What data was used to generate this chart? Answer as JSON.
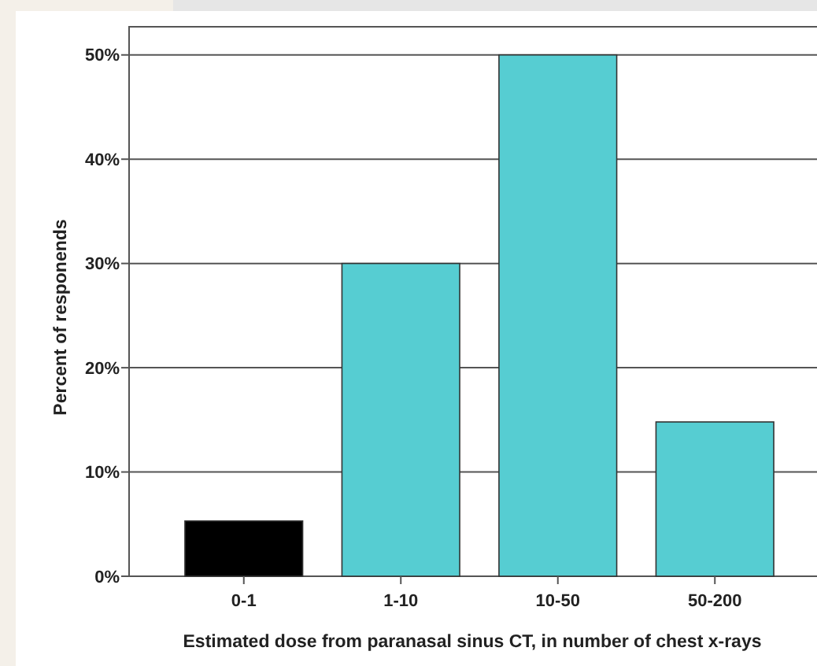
{
  "chart_data": {
    "type": "bar",
    "xlabel": "Estimated dose from paranasal sinus CT, in number of chest x-rays",
    "ylabel": "Percent of responends",
    "categories": [
      "0-1",
      "1-10",
      "10-50",
      "50-200"
    ],
    "values": [
      5.3,
      30,
      50,
      14.8
    ],
    "colors": [
      "#000000",
      "#56cdd2",
      "#56cdd2",
      "#56cdd2"
    ],
    "ylim": [
      0,
      52.7
    ],
    "yticks": [
      {
        "value": 0,
        "label": "0%"
      },
      {
        "value": 10,
        "label": "10%"
      },
      {
        "value": 20,
        "label": "20%"
      },
      {
        "value": 30,
        "label": "30%"
      },
      {
        "value": 40,
        "label": "40%"
      },
      {
        "value": 50,
        "label": "50%"
      }
    ],
    "grid": "y"
  }
}
